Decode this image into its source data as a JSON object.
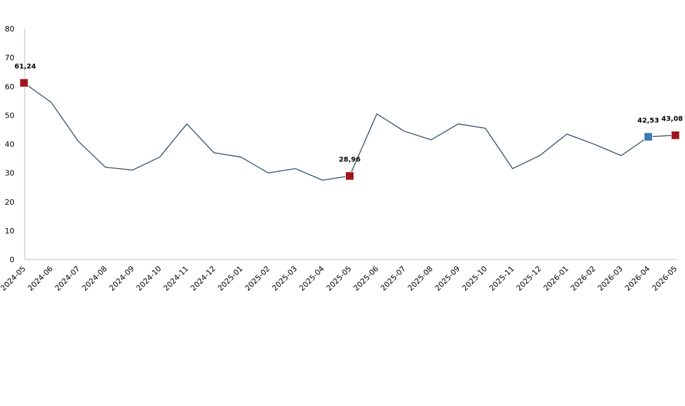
{
  "chart_data": {
    "type": "line",
    "title": "",
    "xlabel": "",
    "ylabel": "",
    "ylim": [
      0,
      80
    ],
    "yticks": [
      0,
      10,
      20,
      30,
      40,
      50,
      60,
      70,
      80
    ],
    "grid": false,
    "legend": "none",
    "line_color": "#3d5a73",
    "categories": [
      "2024-05",
      "2024-06",
      "2024-07",
      "2024-08",
      "2024-09",
      "2024-10",
      "2024-11",
      "2024-12",
      "2025-01",
      "2025-02",
      "2025-03",
      "2025-04",
      "2025-05",
      "2025-06",
      "2025-07",
      "2025-08",
      "2025-09",
      "2025-10",
      "2025-11",
      "2025-12",
      "2026-01",
      "2026-02",
      "2026-03",
      "2026-04",
      "2026-05"
    ],
    "values": [
      61.24,
      54.5,
      41,
      32,
      31,
      35.5,
      47,
      37,
      35.5,
      30,
      31.5,
      27.5,
      28.96,
      50.5,
      44.5,
      41.5,
      47,
      45.5,
      31.5,
      36,
      43.5,
      40,
      36,
      42.53,
      43.08
    ],
    "highlighted_points": [
      {
        "index": 0,
        "label": "61,24",
        "color": "#a3151c"
      },
      {
        "index": 12,
        "label": "28,96",
        "color": "#a3151c"
      },
      {
        "index": 23,
        "label": "42,53",
        "color": "#3d7ab5"
      },
      {
        "index": 24,
        "label": "43,08",
        "color": "#a3151c"
      }
    ]
  }
}
